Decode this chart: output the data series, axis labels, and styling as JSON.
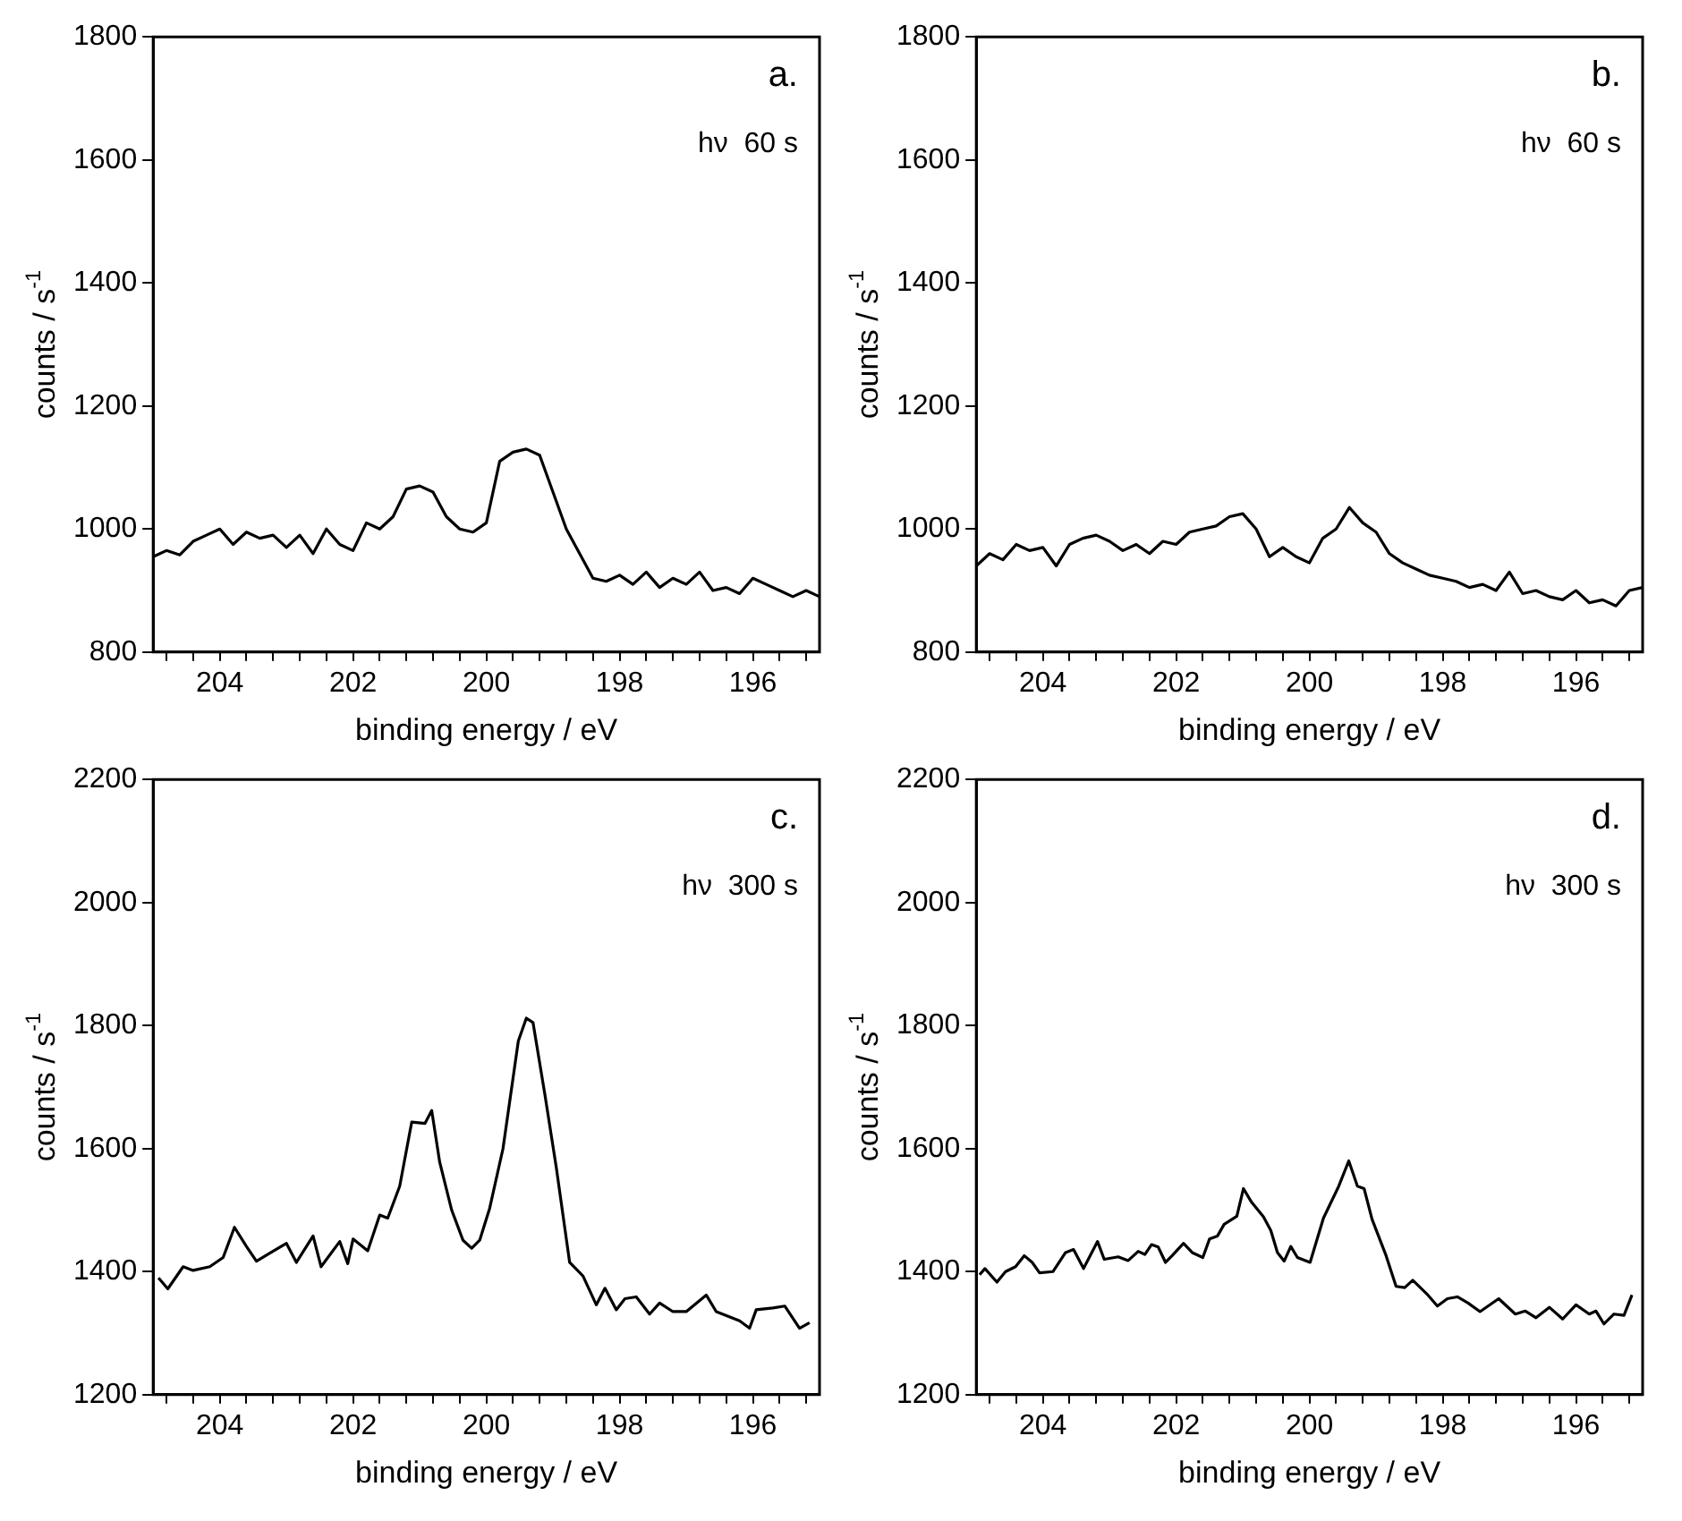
{
  "chart_data": [
    {
      "type": "line",
      "xlabel": "binding energy / eV",
      "ylabel": "counts / s$^{-1}$",
      "annotations": [
        "a.",
        "hν  60 s"
      ],
      "xlim": [
        205,
        195
      ],
      "ylim": [
        800,
        1800
      ],
      "yticks": [
        800,
        1000,
        1200,
        1400,
        1600,
        1800
      ],
      "xticks": [
        {
          "value": 204.8,
          "label": null
        },
        {
          "value": 204.4,
          "label": null
        },
        204,
        {
          "value": 203.6,
          "label": null
        },
        {
          "value": 203.2,
          "label": null
        },
        {
          "value": 202.8,
          "label": null
        },
        {
          "value": 202.4,
          "label": null
        },
        202,
        {
          "value": 201.6,
          "label": null
        },
        {
          "value": 201.2,
          "label": null
        },
        {
          "value": 200.8,
          "label": null
        },
        {
          "value": 200.4,
          "label": null
        },
        200,
        {
          "value": 199.6,
          "label": null
        },
        {
          "value": 199.2,
          "label": null
        },
        {
          "value": 198.8,
          "label": null
        },
        {
          "value": 198.4,
          "label": null
        },
        198,
        {
          "value": 197.6,
          "label": null
        },
        {
          "value": 197.2,
          "label": null
        },
        {
          "value": 196.8,
          "label": null
        },
        {
          "value": 196.4,
          "label": null
        },
        196,
        {
          "value": 195.6,
          "label": null
        },
        {
          "value": 195.2,
          "label": null
        }
      ],
      "series": [
        {
          "color": "#000000",
          "x": [
            205,
            204.8,
            204.6,
            204.4,
            204.2,
            204.0,
            203.8,
            203.6,
            203.4,
            203.2,
            203.0,
            202.8,
            202.6,
            202.4,
            202.2,
            202.0,
            201.8,
            201.6,
            201.4,
            201.2,
            201.0,
            200.8,
            200.6,
            200.4,
            200.2,
            200.0,
            199.8,
            199.6,
            199.4,
            199.2,
            199.0,
            198.8,
            198.6,
            198.4,
            198.2,
            198.0,
            197.8,
            197.6,
            197.4,
            197.2,
            197.0,
            196.8,
            196.6,
            196.4,
            196.2,
            196.0,
            195.8,
            195.6,
            195.4,
            195.2,
            195.0
          ],
          "values": [
            955,
            965,
            958,
            980,
            990,
            1000,
            975,
            995,
            985,
            990,
            970,
            990,
            960,
            1000,
            975,
            965,
            1010,
            1000,
            1020,
            1065,
            1070,
            1060,
            1020,
            1000,
            995,
            1010,
            1110,
            1125,
            1130,
            1120,
            1060,
            1000,
            960,
            920,
            915,
            925,
            910,
            930,
            905,
            920,
            910,
            930,
            900,
            905,
            895,
            920,
            910,
            900,
            890,
            900,
            890
          ]
        }
      ]
    },
    {
      "type": "line",
      "xlabel": "binding energy / eV",
      "ylabel": "counts / s$^{-1}$",
      "annotations": [
        "b.",
        "hν  60 s"
      ],
      "xlim": [
        205,
        195
      ],
      "ylim": [
        800,
        1800
      ],
      "yticks": [
        800,
        1000,
        1200,
        1400,
        1600,
        1800
      ],
      "xticks": [
        {
          "value": 204.8,
          "label": null
        },
        {
          "value": 204.4,
          "label": null
        },
        204,
        {
          "value": 203.6,
          "label": null
        },
        {
          "value": 203.2,
          "label": null
        },
        {
          "value": 202.8,
          "label": null
        },
        {
          "value": 202.4,
          "label": null
        },
        202,
        {
          "value": 201.6,
          "label": null
        },
        {
          "value": 201.2,
          "label": null
        },
        {
          "value": 200.8,
          "label": null
        },
        {
          "value": 200.4,
          "label": null
        },
        200,
        {
          "value": 199.6,
          "label": null
        },
        {
          "value": 199.2,
          "label": null
        },
        {
          "value": 198.8,
          "label": null
        },
        {
          "value": 198.4,
          "label": null
        },
        198,
        {
          "value": 197.6,
          "label": null
        },
        {
          "value": 197.2,
          "label": null
        },
        {
          "value": 196.8,
          "label": null
        },
        {
          "value": 196.4,
          "label": null
        },
        196,
        {
          "value": 195.6,
          "label": null
        },
        {
          "value": 195.2,
          "label": null
        }
      ],
      "series": [
        {
          "color": "#000000",
          "x": [
            205,
            204.8,
            204.6,
            204.4,
            204.2,
            204.0,
            203.8,
            203.6,
            203.4,
            203.2,
            203.0,
            202.8,
            202.6,
            202.4,
            202.2,
            202.0,
            201.8,
            201.6,
            201.4,
            201.2,
            201.0,
            200.8,
            200.6,
            200.4,
            200.2,
            200.0,
            199.8,
            199.6,
            199.4,
            199.2,
            199.0,
            198.8,
            198.6,
            198.4,
            198.2,
            198.0,
            197.8,
            197.6,
            197.4,
            197.2,
            197.0,
            196.8,
            196.6,
            196.4,
            196.2,
            196.0,
            195.8,
            195.6,
            195.4,
            195.2,
            195.0
          ],
          "values": [
            940,
            960,
            950,
            975,
            965,
            970,
            940,
            975,
            985,
            990,
            980,
            965,
            975,
            960,
            980,
            975,
            995,
            1000,
            1005,
            1020,
            1025,
            1000,
            955,
            970,
            955,
            945,
            985,
            1000,
            1035,
            1010,
            995,
            960,
            945,
            935,
            925,
            920,
            915,
            905,
            910,
            900,
            930,
            895,
            900,
            890,
            885,
            900,
            880,
            885,
            875,
            900,
            905
          ]
        }
      ]
    },
    {
      "type": "line",
      "xlabel": "binding energy / eV",
      "ylabel": "counts / s$^{-1}$",
      "annotations": [
        "c.",
        "hν  300 s"
      ],
      "xlim": [
        205,
        195
      ],
      "ylim": [
        1200,
        2200
      ],
      "yticks": [
        1200,
        1400,
        1600,
        1800,
        2000,
        2200
      ],
      "xticks": [
        {
          "value": 204.8,
          "label": null
        },
        {
          "value": 204.4,
          "label": null
        },
        204,
        {
          "value": 203.6,
          "label": null
        },
        {
          "value": 203.2,
          "label": null
        },
        {
          "value": 202.8,
          "label": null
        },
        {
          "value": 202.4,
          "label": null
        },
        202,
        {
          "value": 201.6,
          "label": null
        },
        {
          "value": 201.2,
          "label": null
        },
        {
          "value": 200.8,
          "label": null
        },
        {
          "value": 200.4,
          "label": null
        },
        200,
        {
          "value": 199.6,
          "label": null
        },
        {
          "value": 199.2,
          "label": null
        },
        {
          "value": 198.8,
          "label": null
        },
        {
          "value": 198.4,
          "label": null
        },
        198,
        {
          "value": 197.6,
          "label": null
        },
        {
          "value": 197.2,
          "label": null
        },
        {
          "value": 196.8,
          "label": null
        },
        {
          "value": 196.4,
          "label": null
        },
        196,
        {
          "value": 195.6,
          "label": null
        },
        {
          "value": 195.2,
          "label": null
        }
      ],
      "series": [
        {
          "color": "#000000",
          "x": [
            204.92,
            204.78,
            204.55,
            204.4,
            204.15,
            203.95,
            203.78,
            203.6,
            203.45,
            203.25,
            203.0,
            202.85,
            202.6,
            202.48,
            202.2,
            202.08,
            202.0,
            201.78,
            201.6,
            201.48,
            201.3,
            201.12,
            200.92,
            200.82,
            200.7,
            200.52,
            200.35,
            200.22,
            200.1,
            199.95,
            199.75,
            199.52,
            199.4,
            199.3,
            199.12,
            198.95,
            198.75,
            198.55,
            198.35,
            198.22,
            198.05,
            197.92,
            197.75,
            197.55,
            197.4,
            197.2,
            197.0,
            196.7,
            196.55,
            196.2,
            196.05,
            195.95,
            195.7,
            195.52,
            195.3,
            195.15
          ],
          "values": [
            1390,
            1372,
            1408,
            1402,
            1408,
            1423,
            1472,
            1441,
            1417,
            1430,
            1446,
            1415,
            1458,
            1408,
            1449,
            1413,
            1453,
            1434,
            1492,
            1487,
            1539,
            1643,
            1641,
            1662,
            1578,
            1500,
            1451,
            1438,
            1451,
            1503,
            1600,
            1775,
            1812,
            1805,
            1687,
            1569,
            1415,
            1393,
            1346,
            1373,
            1338,
            1356,
            1359,
            1331,
            1349,
            1335,
            1335,
            1362,
            1335,
            1320,
            1308,
            1338,
            1341,
            1344,
            1308,
            1317
          ]
        }
      ]
    },
    {
      "type": "line",
      "xlabel": "binding energy / eV",
      "ylabel": "counts / s$^{-1}$",
      "annotations": [
        "d.",
        "hν  300 s"
      ],
      "xlim": [
        205,
        195
      ],
      "ylim": [
        1200,
        2200
      ],
      "yticks": [
        1200,
        1400,
        1600,
        1800,
        2000,
        2200
      ],
      "xticks": [
        {
          "value": 204.8,
          "label": null
        },
        {
          "value": 204.4,
          "label": null
        },
        204,
        {
          "value": 203.6,
          "label": null
        },
        {
          "value": 203.2,
          "label": null
        },
        {
          "value": 202.8,
          "label": null
        },
        {
          "value": 202.4,
          "label": null
        },
        202,
        {
          "value": 201.6,
          "label": null
        },
        {
          "value": 201.2,
          "label": null
        },
        {
          "value": 200.8,
          "label": null
        },
        {
          "value": 200.4,
          "label": null
        },
        200,
        {
          "value": 199.6,
          "label": null
        },
        {
          "value": 199.2,
          "label": null
        },
        {
          "value": 198.8,
          "label": null
        },
        {
          "value": 198.4,
          "label": null
        },
        198,
        {
          "value": 197.6,
          "label": null
        },
        {
          "value": 197.2,
          "label": null
        },
        {
          "value": 196.8,
          "label": null
        },
        {
          "value": 196.4,
          "label": null
        },
        196,
        {
          "value": 195.6,
          "label": null
        },
        {
          "value": 195.2,
          "label": null
        }
      ],
      "series": [
        {
          "color": "#000000",
          "x": [
            204.95,
            204.87,
            204.69,
            204.56,
            204.41,
            204.28,
            204.16,
            204.05,
            203.85,
            203.66,
            203.54,
            203.39,
            203.18,
            203.08,
            202.87,
            202.72,
            202.57,
            202.47,
            202.37,
            202.27,
            202.16,
            202.06,
            201.89,
            201.76,
            201.6,
            201.5,
            201.38,
            201.28,
            201.09,
            200.99,
            200.87,
            200.69,
            200.58,
            200.48,
            200.38,
            200.28,
            200.18,
            199.99,
            199.79,
            199.56,
            199.41,
            199.28,
            199.18,
            199.06,
            198.85,
            198.7,
            198.57,
            198.45,
            198.24,
            198.08,
            197.93,
            197.78,
            197.62,
            197.44,
            197.16,
            196.91,
            196.76,
            196.6,
            196.4,
            196.2,
            196.0,
            195.8,
            195.7,
            195.58,
            195.43,
            195.28,
            195.16
          ],
          "values": [
            1395,
            1405,
            1383,
            1400,
            1408,
            1426,
            1415,
            1398,
            1400,
            1431,
            1436,
            1405,
            1449,
            1420,
            1424,
            1418,
            1433,
            1428,
            1444,
            1440,
            1415,
            1426,
            1446,
            1431,
            1423,
            1453,
            1458,
            1477,
            1490,
            1535,
            1513,
            1489,
            1467,
            1431,
            1417,
            1441,
            1423,
            1415,
            1487,
            1539,
            1580,
            1539,
            1535,
            1485,
            1426,
            1376,
            1374,
            1386,
            1364,
            1344,
            1356,
            1359,
            1349,
            1335,
            1356,
            1331,
            1336,
            1325,
            1342,
            1323,
            1346,
            1331,
            1336,
            1315,
            1331,
            1329,
            1362
          ]
        }
      ]
    }
  ]
}
